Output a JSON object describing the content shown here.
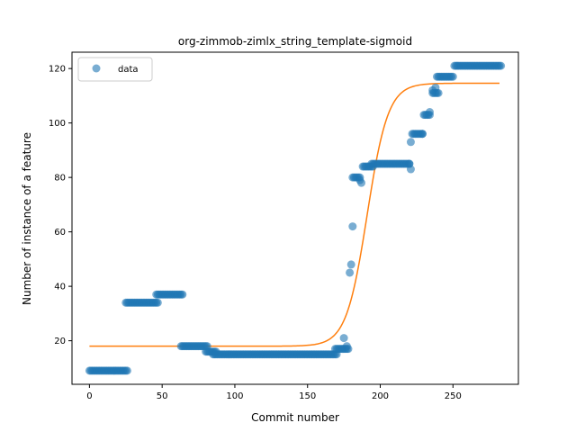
{
  "chart_data": {
    "type": "scatter",
    "title": "org-zimmob-zimlx_string_template-sigmoid",
    "xlabel": "Commit number",
    "ylabel": "Number of instance of a feature",
    "xlim": [
      -12,
      295
    ],
    "ylim": [
      4,
      126
    ],
    "x_ticks": [
      0,
      50,
      100,
      150,
      200,
      250
    ],
    "y_ticks": [
      20,
      40,
      60,
      80,
      100,
      120
    ],
    "legend": {
      "position": "top-left",
      "entries": [
        "data"
      ]
    },
    "colors": {
      "data": "#1f77b4",
      "fit": "#ff7f0e"
    },
    "series": [
      {
        "name": "data",
        "kind": "points",
        "segments": [
          {
            "x_start": 0,
            "x_end": 26,
            "y": 9
          },
          {
            "x_start": 25,
            "x_end": 47,
            "y": 34
          },
          {
            "x_start": 46,
            "x_end": 64,
            "y": 37
          },
          {
            "x_start": 63,
            "x_end": 81,
            "y": 18
          },
          {
            "x_start": 80,
            "x_end": 87,
            "y": 16
          },
          {
            "x_start": 85,
            "x_end": 170,
            "y": 15
          },
          {
            "x_start": 169,
            "x_end": 178,
            "y": 17
          },
          {
            "x_start": 181,
            "x_end": 186,
            "y": 80
          },
          {
            "x_start": 188,
            "x_end": 195,
            "y": 84
          },
          {
            "x_start": 195,
            "x_end": 220,
            "y": 85
          },
          {
            "x_start": 222,
            "x_end": 229,
            "y": 96
          },
          {
            "x_start": 230,
            "x_end": 234,
            "y": 103
          },
          {
            "x_start": 236,
            "x_end": 240,
            "y": 111
          },
          {
            "x_start": 239,
            "x_end": 250,
            "y": 117
          },
          {
            "x_start": 251,
            "x_end": 283,
            "y": 121
          }
        ],
        "points": [
          [
            175,
            21
          ],
          [
            177,
            18
          ],
          [
            179,
            45
          ],
          [
            180,
            48
          ],
          [
            181,
            62
          ],
          [
            186,
            79
          ],
          [
            187,
            78
          ],
          [
            194,
            85
          ],
          [
            220,
            85
          ],
          [
            221,
            83
          ],
          [
            221,
            93
          ],
          [
            229,
            96
          ],
          [
            234,
            104
          ],
          [
            236,
            112
          ],
          [
            238,
            113
          ]
        ]
      },
      {
        "name": "",
        "kind": "line",
        "model": "sigmoid",
        "params": {
          "low": 18,
          "high": 114.6,
          "midpoint": 191,
          "scale": 7.2
        },
        "x_range": [
          0,
          282
        ]
      }
    ]
  }
}
